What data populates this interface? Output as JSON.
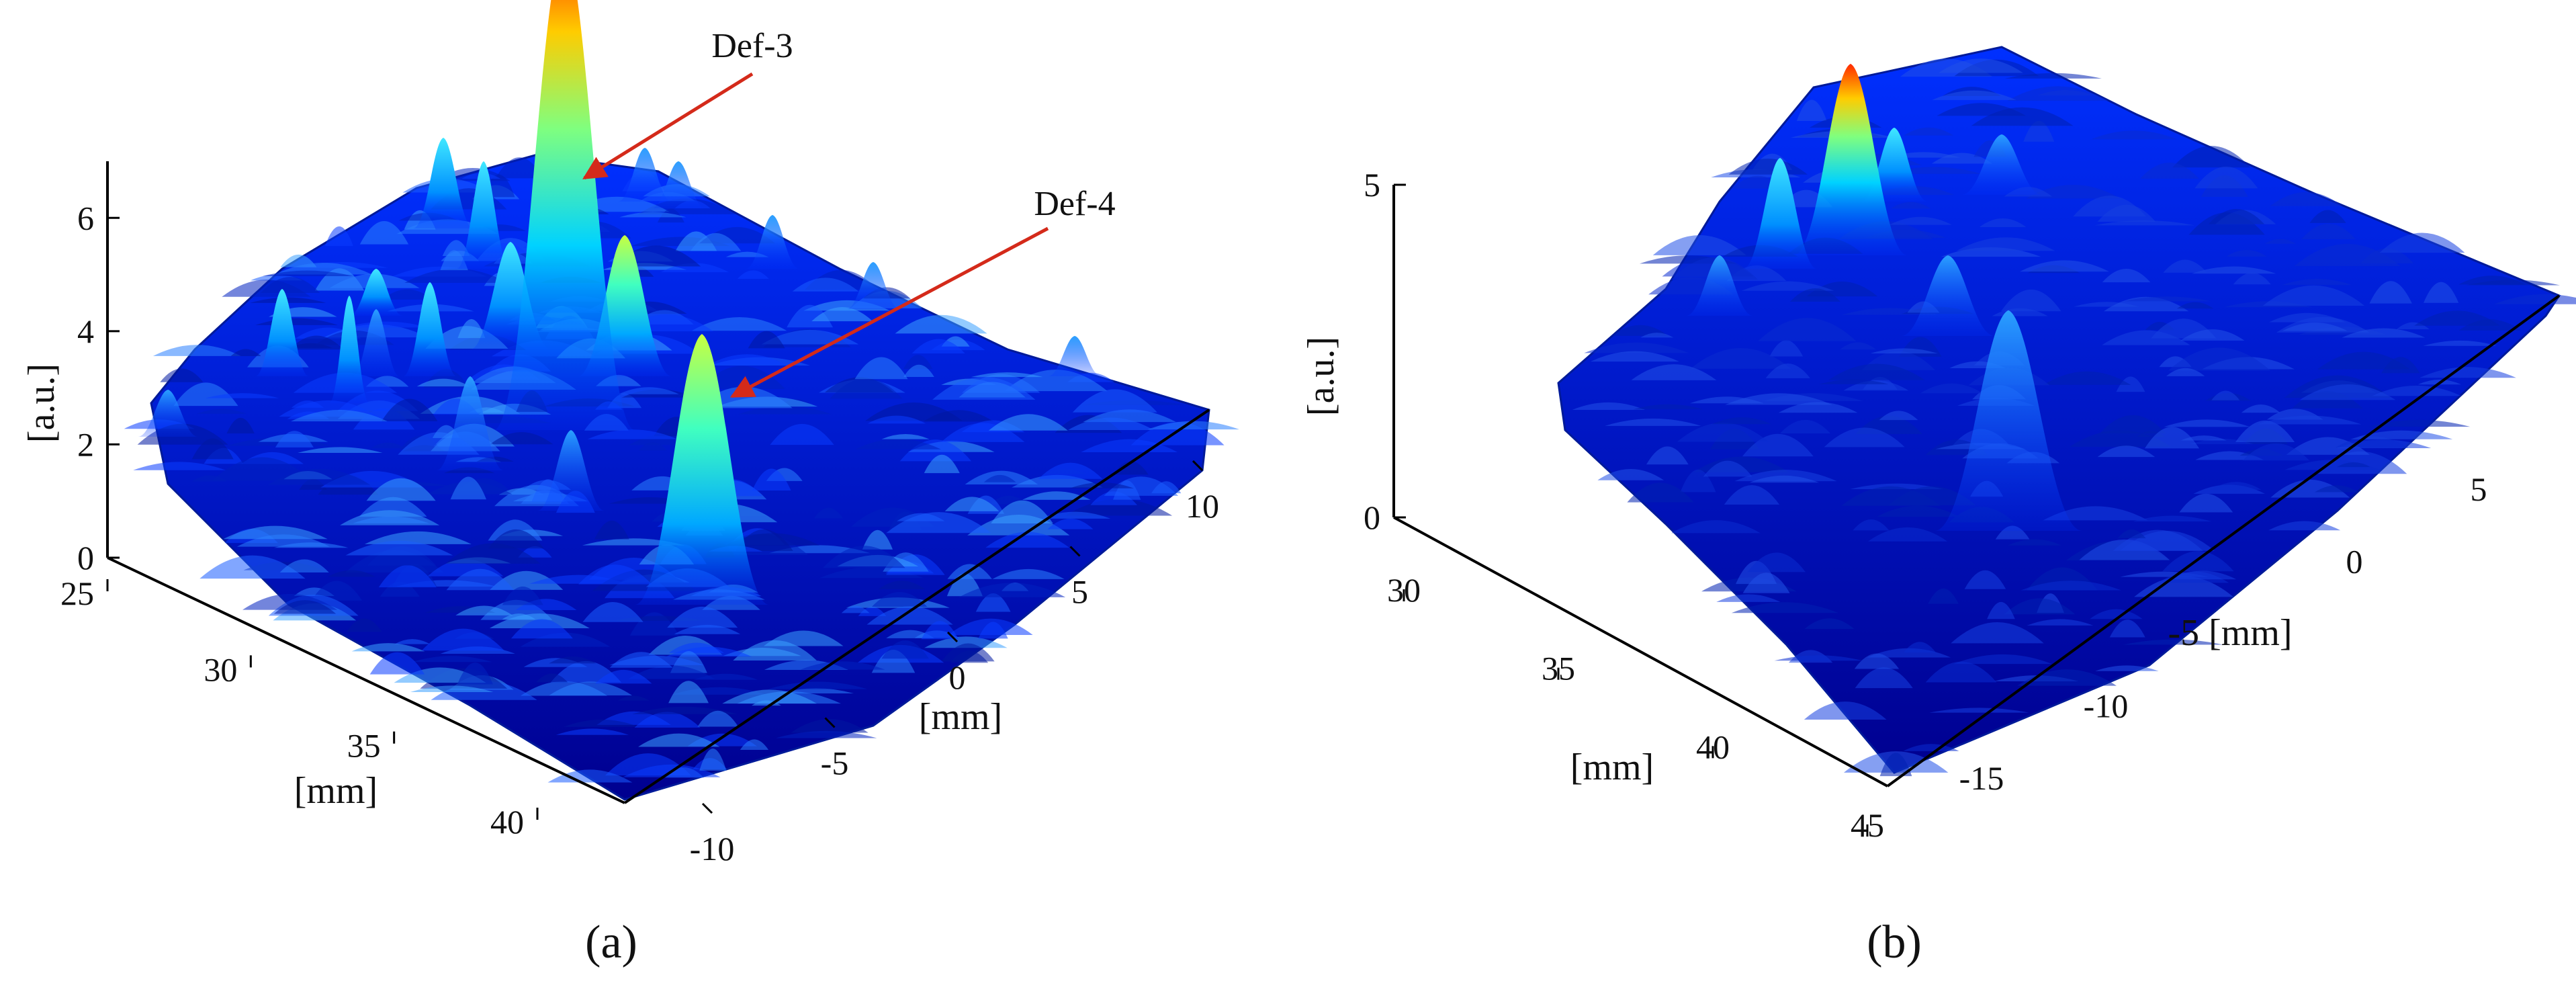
{
  "chart_data": [
    {
      "panel": "(a)",
      "type": "surface3d",
      "zlabel": "[a.u.]",
      "xlabel": "[mm]",
      "ylabel": "[mm]",
      "zlim": [
        0,
        7
      ],
      "z_ticks": [
        "0",
        "2",
        "4",
        "6"
      ],
      "x_ticks": [
        "25",
        "30",
        "35",
        "40"
      ],
      "y_ticks": [
        "-10",
        "-5",
        "0",
        "5",
        "10"
      ],
      "peaks": [
        {
          "label": "Def-3",
          "x": 32,
          "y": 8,
          "z": 6.8
        },
        {
          "label": "Def-4",
          "x": 37,
          "y": 1,
          "z": 3.0
        }
      ],
      "colormap": [
        "#00008f",
        "#0030ff",
        "#00c8ff",
        "#7fff7f",
        "#ffd000",
        "#ff3000"
      ],
      "annotation_color": "#d42a1a"
    },
    {
      "panel": "(b)",
      "type": "surface3d",
      "zlabel": "[a.u.]",
      "xlabel": "[mm]",
      "ylabel": "[mm]",
      "zlim": [
        0,
        5
      ],
      "z_ticks": [
        "0",
        "5"
      ],
      "x_ticks": [
        "30",
        "35",
        "40",
        "45"
      ],
      "y_ticks": [
        "-15",
        "-10",
        "-5",
        "0",
        "5"
      ],
      "peaks": [
        {
          "x": 31,
          "y": 3,
          "z": 5.0
        },
        {
          "x": 38,
          "y": -7,
          "z": 1.7
        }
      ],
      "colormap": [
        "#00008f",
        "#0030ff",
        "#00c8ff",
        "#7fff7f",
        "#ffd000",
        "#ff3000"
      ]
    }
  ],
  "labels": {
    "a": {
      "def3": "Def-3",
      "def4": "Def-4",
      "unit_z": "[a.u.]",
      "unit_x": "[mm]",
      "unit_y": "[mm]",
      "y_unit_prefix": "",
      "panel": "(a)"
    },
    "b": {
      "unit_z": "[a.u.]",
      "unit_x": "[mm]",
      "y_unit_with_tick": "-5 [mm]",
      "panel": "(b)"
    }
  }
}
